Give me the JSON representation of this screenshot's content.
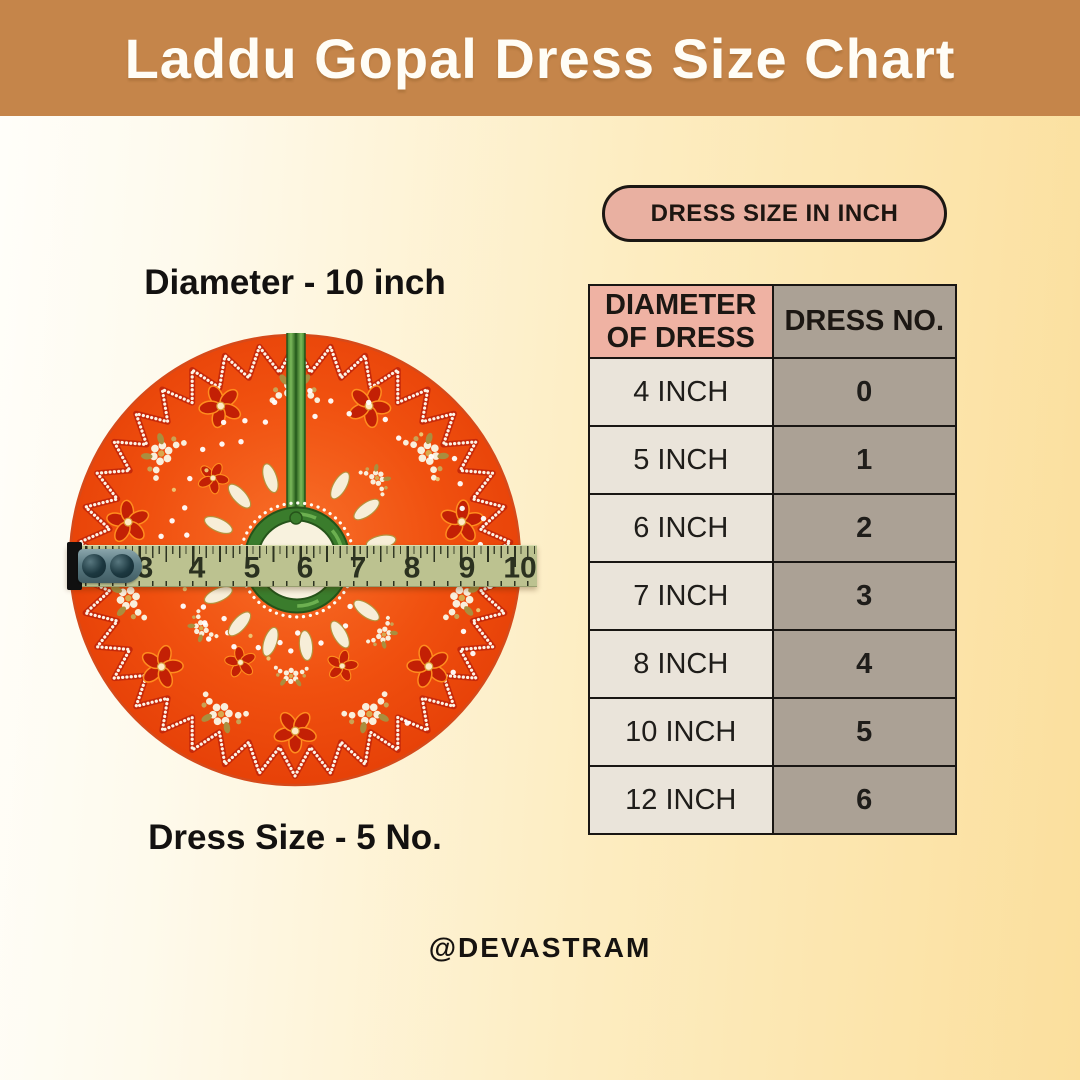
{
  "banner": {
    "title": "Laddu Gopal Dress Size Chart",
    "bg_color": "#c5854a"
  },
  "figure": {
    "diameter_label": "Diameter - 10 inch",
    "size_label": "Dress Size - 5 No.",
    "ruler_numbers": [
      "3",
      "4",
      "5",
      "6",
      "7",
      "8",
      "9",
      "10"
    ],
    "dress_colors": {
      "fabric_orange": "#f04c10",
      "ribbon_green": "#3a7c2c",
      "tape_sage": "#bcc290"
    }
  },
  "size_panel": {
    "badge_label": "DRESS SIZE IN INCH",
    "table": {
      "col_headers": [
        "DIAMETER OF DRESS",
        "DRESS NO."
      ],
      "rows": [
        {
          "diameter": "4 INCH",
          "dress_no": "0"
        },
        {
          "diameter": "5 INCH",
          "dress_no": "1"
        },
        {
          "diameter": "6 INCH",
          "dress_no": "2"
        },
        {
          "diameter": "7 INCH",
          "dress_no": "3"
        },
        {
          "diameter": "8 INCH",
          "dress_no": "4"
        },
        {
          "diameter": "10 INCH",
          "dress_no": "5"
        },
        {
          "diameter": "12 INCH",
          "dress_no": "6"
        }
      ],
      "accent_colors": {
        "header_salmon": "#efb2a3",
        "col_gray": "#aba195",
        "cell_cream": "#eae4da",
        "badge_salmon": "#e9b0a1"
      }
    }
  },
  "footer": {
    "handle": "@DEVASTRAM"
  }
}
